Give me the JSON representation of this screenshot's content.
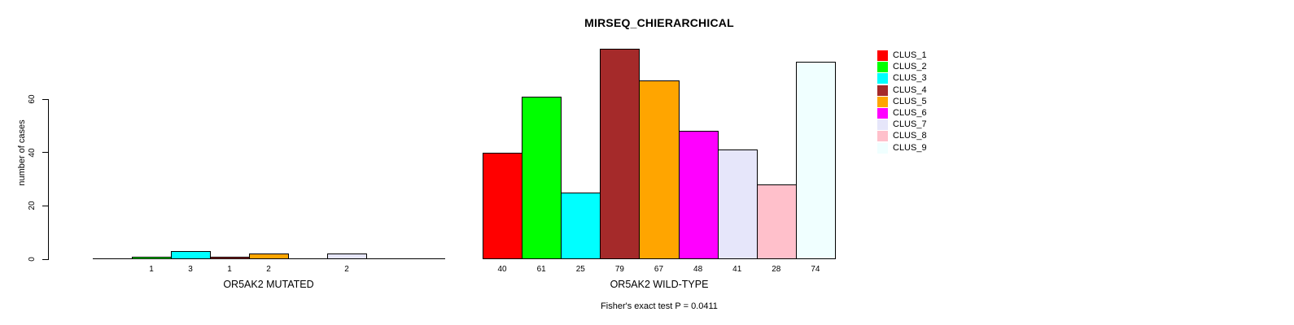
{
  "chart_data": {
    "type": "bar",
    "title": "MIRSEQ_CHIERARCHICAL",
    "ylabel": "number of cases",
    "xlabel": "",
    "categories": [
      "OR5AK2 MUTATED",
      "OR5AK2 WILD-TYPE"
    ],
    "series": [
      {
        "name": "CLUS_1",
        "color": "#FF0000",
        "values": [
          0,
          40
        ]
      },
      {
        "name": "CLUS_2",
        "color": "#00FF00",
        "values": [
          1,
          61
        ]
      },
      {
        "name": "CLUS_3",
        "color": "#00FFFF",
        "values": [
          3,
          25
        ]
      },
      {
        "name": "CLUS_4",
        "color": "#A52A2A",
        "values": [
          1,
          79
        ]
      },
      {
        "name": "CLUS_5",
        "color": "#FFA500",
        "values": [
          2,
          67
        ]
      },
      {
        "name": "CLUS_6",
        "color": "#FF00FF",
        "values": [
          0,
          48
        ]
      },
      {
        "name": "CLUS_7",
        "color": "#E6E6FA",
        "values": [
          2,
          41
        ]
      },
      {
        "name": "CLUS_8",
        "color": "#FFC0CB",
        "values": [
          0,
          28
        ]
      },
      {
        "name": "CLUS_9",
        "color": "#F0FFFF",
        "values": [
          0,
          74
        ]
      }
    ],
    "yticks": [
      0,
      20,
      40,
      60
    ],
    "ylim": [
      0,
      79
    ],
    "grid": false,
    "legend_position": "right",
    "bar_outline_color": "#000000",
    "value_labels_rule": "value shown under each bar when value > 0",
    "annotation": "Fisher's exact test P = 0.0411"
  }
}
